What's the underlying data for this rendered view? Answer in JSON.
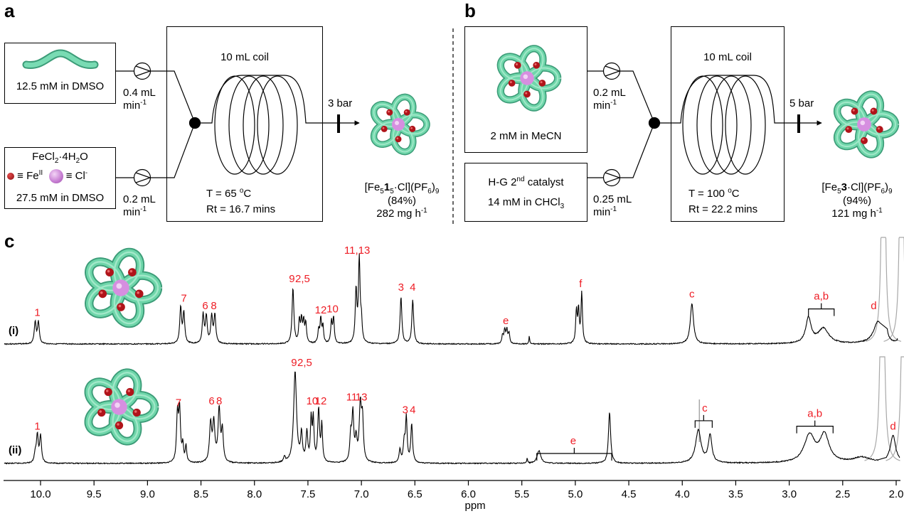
{
  "panels": {
    "a": {
      "letter": "a",
      "reagent1": {
        "conc": "12.5 mM in DMSO",
        "flow": "0.4 mL",
        "flow_unit": "min",
        "flow_exp": "-1"
      },
      "reagent2": {
        "formula_pre": "FeCl",
        "formula_sub1": "2",
        "formula_mid": "·4H",
        "formula_sub2": "2",
        "formula_post": "O",
        "legend_fe": "≡ Fe",
        "legend_fe_sup": "II",
        "legend_cl": "≡ Cl",
        "legend_cl_sup": "-",
        "conc": "27.5 mM in DMSO",
        "flow": "0.2 mL",
        "flow_unit": "min",
        "flow_exp": "-1"
      },
      "reactor": {
        "coil": "10 mL coil",
        "temp": "T = 65 ",
        "temp_deg": "o",
        "temp_unit": "C",
        "rt": "Rt = 16.7 mins"
      },
      "pressure": "3 bar",
      "product": {
        "name_pre": "[Fe",
        "name_sub1": "5",
        "name_bold": "1",
        "name_sub2": "5",
        "name_mid": "·Cl](PF",
        "name_sub3": "6",
        "name_post": ")",
        "name_sub4": "9",
        "yield": "(84%)",
        "rate": "282 mg h",
        "rate_exp": "-1"
      }
    },
    "b": {
      "letter": "b",
      "reagent1": {
        "conc": "2 mM in MeCN",
        "flow": "0.2 mL",
        "flow_unit": "min",
        "flow_exp": "-1"
      },
      "reagent2": {
        "name_pre": "H-G 2",
        "name_sup": "nd",
        "name_post": " catalyst",
        "conc_pre": "14 mM in CHCl",
        "conc_sub": "3",
        "flow": "0.25 mL",
        "flow_unit": "min",
        "flow_exp": "-1"
      },
      "reactor": {
        "coil": "10 mL coil",
        "temp": "T = 100 ",
        "temp_deg": "o",
        "temp_unit": "C",
        "rt": "Rt = 22.2 mins"
      },
      "pressure": "5 bar",
      "product": {
        "name_pre": "[Fe",
        "name_sub1": "5",
        "name_bold": "3",
        "name_mid": "·Cl](PF",
        "name_sub3": "6",
        "name_post": ")",
        "name_sub4": "9",
        "yield": "(94%)",
        "rate": "121 mg h",
        "rate_exp": "-1"
      }
    },
    "c": {
      "letter": "c"
    }
  },
  "colors": {
    "strand": "#6fd6aa",
    "strand_dark": "#3c9c78",
    "iron": "#b0141a",
    "chloride": "#d68fe0",
    "label_red": "#ee1c24",
    "solvent": "#a8a8a8"
  },
  "chart_data": {
    "type": "line",
    "title": "",
    "xlabel": "ppm",
    "ylabel": "",
    "xlim": [
      10.35,
      1.9
    ],
    "x_reversed": true,
    "ticks_major": [
      10.0,
      9.5,
      9.0,
      8.5,
      8.0,
      7.5,
      7.0,
      6.5,
      6.0,
      5.5,
      5.0,
      4.5,
      4.0,
      3.5,
      3.0,
      2.5,
      2.0
    ],
    "tick_labels": [
      "10.0",
      "9.5",
      "9.0",
      "8.5",
      "8.0",
      "7.5",
      "7.0",
      "6.5",
      "6.0",
      "5.5",
      "5.0",
      "4.5",
      "4.0",
      "3.5",
      "3.0",
      "2.5",
      "2.0"
    ],
    "grid": false,
    "series": [
      {
        "name": "(i)",
        "peaks": [
          {
            "ppm": 10.05,
            "h": 0.26,
            "w": 0.01
          },
          {
            "ppm": 10.02,
            "h": 0.26,
            "w": 0.01
          },
          {
            "ppm": 8.69,
            "h": 0.43,
            "w": 0.01
          },
          {
            "ppm": 8.66,
            "h": 0.36,
            "w": 0.01
          },
          {
            "ppm": 8.48,
            "h": 0.34,
            "w": 0.01
          },
          {
            "ppm": 8.45,
            "h": 0.32,
            "w": 0.01
          },
          {
            "ppm": 8.4,
            "h": 0.32,
            "w": 0.01
          },
          {
            "ppm": 8.37,
            "h": 0.34,
            "w": 0.01
          },
          {
            "ppm": 7.64,
            "h": 0.66,
            "w": 0.01
          },
          {
            "ppm": 7.58,
            "h": 0.27,
            "w": 0.008
          },
          {
            "ppm": 7.56,
            "h": 0.27,
            "w": 0.008
          },
          {
            "ppm": 7.54,
            "h": 0.25,
            "w": 0.008
          },
          {
            "ppm": 7.52,
            "h": 0.24,
            "w": 0.008
          },
          {
            "ppm": 7.4,
            "h": 0.16,
            "w": 0.008
          },
          {
            "ppm": 7.38,
            "h": 0.29,
            "w": 0.008
          },
          {
            "ppm": 7.36,
            "h": 0.2,
            "w": 0.008
          },
          {
            "ppm": 7.28,
            "h": 0.26,
            "w": 0.008
          },
          {
            "ppm": 7.26,
            "h": 0.3,
            "w": 0.008
          },
          {
            "ppm": 7.05,
            "h": 0.62,
            "w": 0.009
          },
          {
            "ppm": 7.02,
            "h": 1.0,
            "w": 0.009
          },
          {
            "ppm": 7.0,
            "h": 0.24,
            "w": 0.008
          },
          {
            "ppm": 6.63,
            "h": 0.56,
            "w": 0.01
          },
          {
            "ppm": 6.52,
            "h": 0.52,
            "w": 0.01
          },
          {
            "ppm": 5.68,
            "h": 0.1,
            "w": 0.008
          },
          {
            "ppm": 5.66,
            "h": 0.16,
            "w": 0.008
          },
          {
            "ppm": 5.64,
            "h": 0.16,
            "w": 0.008
          },
          {
            "ppm": 5.62,
            "h": 0.12,
            "w": 0.008
          },
          {
            "ppm": 5.43,
            "h": 0.1,
            "w": 0.004
          },
          {
            "ppm": 4.99,
            "h": 0.38,
            "w": 0.008
          },
          {
            "ppm": 4.97,
            "h": 0.39,
            "w": 0.008
          },
          {
            "ppm": 4.94,
            "h": 0.6,
            "w": 0.008
          },
          {
            "ppm": 3.91,
            "h": 0.48,
            "w": 0.018
          },
          {
            "ppm": 2.82,
            "h": 0.3,
            "w": 0.03
          },
          {
            "ppm": 2.68,
            "h": 0.18,
            "w": 0.06
          },
          {
            "ppm": 2.17,
            "h": 0.26,
            "w": 0.05
          },
          {
            "ppm": 2.1,
            "h": 0.34,
            "w": 0.012
          },
          {
            "ppm": 1.98,
            "h": 0.12,
            "w": 0.006
          }
        ],
        "solvent_peaks": [
          2.12,
          1.95
        ],
        "labels": [
          {
            "text": "1",
            "ppm": 10.03
          },
          {
            "text": "7",
            "ppm": 8.66
          },
          {
            "text": "6",
            "ppm": 8.46
          },
          {
            "text": "8",
            "ppm": 8.38
          },
          {
            "text": "9",
            "ppm": 7.65
          },
          {
            "text": "2,5",
            "ppm": 7.55
          },
          {
            "text": "12",
            "ppm": 7.38
          },
          {
            "text": "10",
            "ppm": 7.27
          },
          {
            "text": "11,13",
            "ppm": 7.04
          },
          {
            "text": "3",
            "ppm": 6.63
          },
          {
            "text": "4",
            "ppm": 6.52
          },
          {
            "text": "e",
            "ppm": 5.65
          },
          {
            "text": "f",
            "ppm": 4.95
          },
          {
            "text": "c",
            "ppm": 3.91
          },
          {
            "text": "a,b",
            "ppm": 2.7,
            "bracket": [
              2.82,
              2.58
            ]
          },
          {
            "text": "d",
            "ppm": 2.21
          }
        ]
      },
      {
        "name": "(ii)",
        "peaks": [
          {
            "ppm": 10.05,
            "h": 0.1,
            "w": 0.01
          },
          {
            "ppm": 10.03,
            "h": 0.3,
            "w": 0.01
          },
          {
            "ppm": 10.0,
            "h": 0.3,
            "w": 0.01
          },
          {
            "ppm": 8.72,
            "h": 0.52,
            "w": 0.01
          },
          {
            "ppm": 8.7,
            "h": 0.56,
            "w": 0.01
          },
          {
            "ppm": 8.67,
            "h": 0.18,
            "w": 0.008
          },
          {
            "ppm": 8.64,
            "h": 0.18,
            "w": 0.008
          },
          {
            "ppm": 8.41,
            "h": 0.42,
            "w": 0.012
          },
          {
            "ppm": 8.38,
            "h": 0.42,
            "w": 0.012
          },
          {
            "ppm": 8.33,
            "h": 0.58,
            "w": 0.012
          },
          {
            "ppm": 8.3,
            "h": 0.34,
            "w": 0.01
          },
          {
            "ppm": 7.72,
            "h": 0.06,
            "w": 0.01
          },
          {
            "ppm": 7.62,
            "h": 1.0,
            "w": 0.016
          },
          {
            "ppm": 7.56,
            "h": 0.3,
            "w": 0.01
          },
          {
            "ppm": 7.51,
            "h": 0.32,
            "w": 0.01
          },
          {
            "ppm": 7.47,
            "h": 0.46,
            "w": 0.008
          },
          {
            "ppm": 7.45,
            "h": 0.46,
            "w": 0.008
          },
          {
            "ppm": 7.4,
            "h": 0.58,
            "w": 0.01
          },
          {
            "ppm": 7.37,
            "h": 0.4,
            "w": 0.008
          },
          {
            "ppm": 7.1,
            "h": 0.28,
            "w": 0.01
          },
          {
            "ppm": 7.08,
            "h": 0.52,
            "w": 0.01
          },
          {
            "ppm": 7.05,
            "h": 0.24,
            "w": 0.01
          },
          {
            "ppm": 7.01,
            "h": 0.62,
            "w": 0.012
          },
          {
            "ppm": 6.99,
            "h": 0.44,
            "w": 0.01
          },
          {
            "ppm": 6.64,
            "h": 0.14,
            "w": 0.01
          },
          {
            "ppm": 6.6,
            "h": 0.22,
            "w": 0.01
          },
          {
            "ppm": 6.58,
            "h": 0.48,
            "w": 0.009
          },
          {
            "ppm": 6.53,
            "h": 0.42,
            "w": 0.01
          },
          {
            "ppm": 5.45,
            "h": 0.06,
            "w": 0.004
          },
          {
            "ppm": 5.34,
            "h": 0.14,
            "w": 0.02
          },
          {
            "ppm": 4.68,
            "h": 0.56,
            "w": 0.012
          },
          {
            "ppm": 3.85,
            "h": 0.36,
            "w": 0.03
          },
          {
            "ppm": 3.74,
            "h": 0.3,
            "w": 0.02
          },
          {
            "ppm": 2.81,
            "h": 0.3,
            "w": 0.06
          },
          {
            "ppm": 2.67,
            "h": 0.3,
            "w": 0.05
          },
          {
            "ppm": 2.32,
            "h": 0.06,
            "w": 0.1
          },
          {
            "ppm": 2.03,
            "h": 0.3,
            "w": 0.03
          }
        ],
        "solvent_peaks": [
          2.13,
          1.93
        ],
        "solvent_peak_small": 3.84,
        "labels": [
          {
            "text": "1",
            "ppm": 10.03
          },
          {
            "text": "7",
            "ppm": 8.71
          },
          {
            "text": "6",
            "ppm": 8.4
          },
          {
            "text": "8",
            "ppm": 8.33
          },
          {
            "text": "9",
            "ppm": 7.63
          },
          {
            "text": "2,5",
            "ppm": 7.53
          },
          {
            "text": "10",
            "ppm": 7.46
          },
          {
            "text": "12",
            "ppm": 7.38
          },
          {
            "text": "11",
            "ppm": 7.09
          },
          {
            "text": "13",
            "ppm": 7.0
          },
          {
            "text": "3",
            "ppm": 6.59
          },
          {
            "text": "4",
            "ppm": 6.52
          },
          {
            "text": "e",
            "ppm": 5.02,
            "bracket": [
              5.36,
              4.66
            ]
          },
          {
            "text": "c",
            "ppm": 3.79,
            "bracket": [
              3.88,
              3.72
            ]
          },
          {
            "text": "a,b",
            "ppm": 2.76,
            "bracket": [
              2.93,
              2.59
            ]
          },
          {
            "text": "d",
            "ppm": 2.03
          }
        ]
      }
    ]
  }
}
